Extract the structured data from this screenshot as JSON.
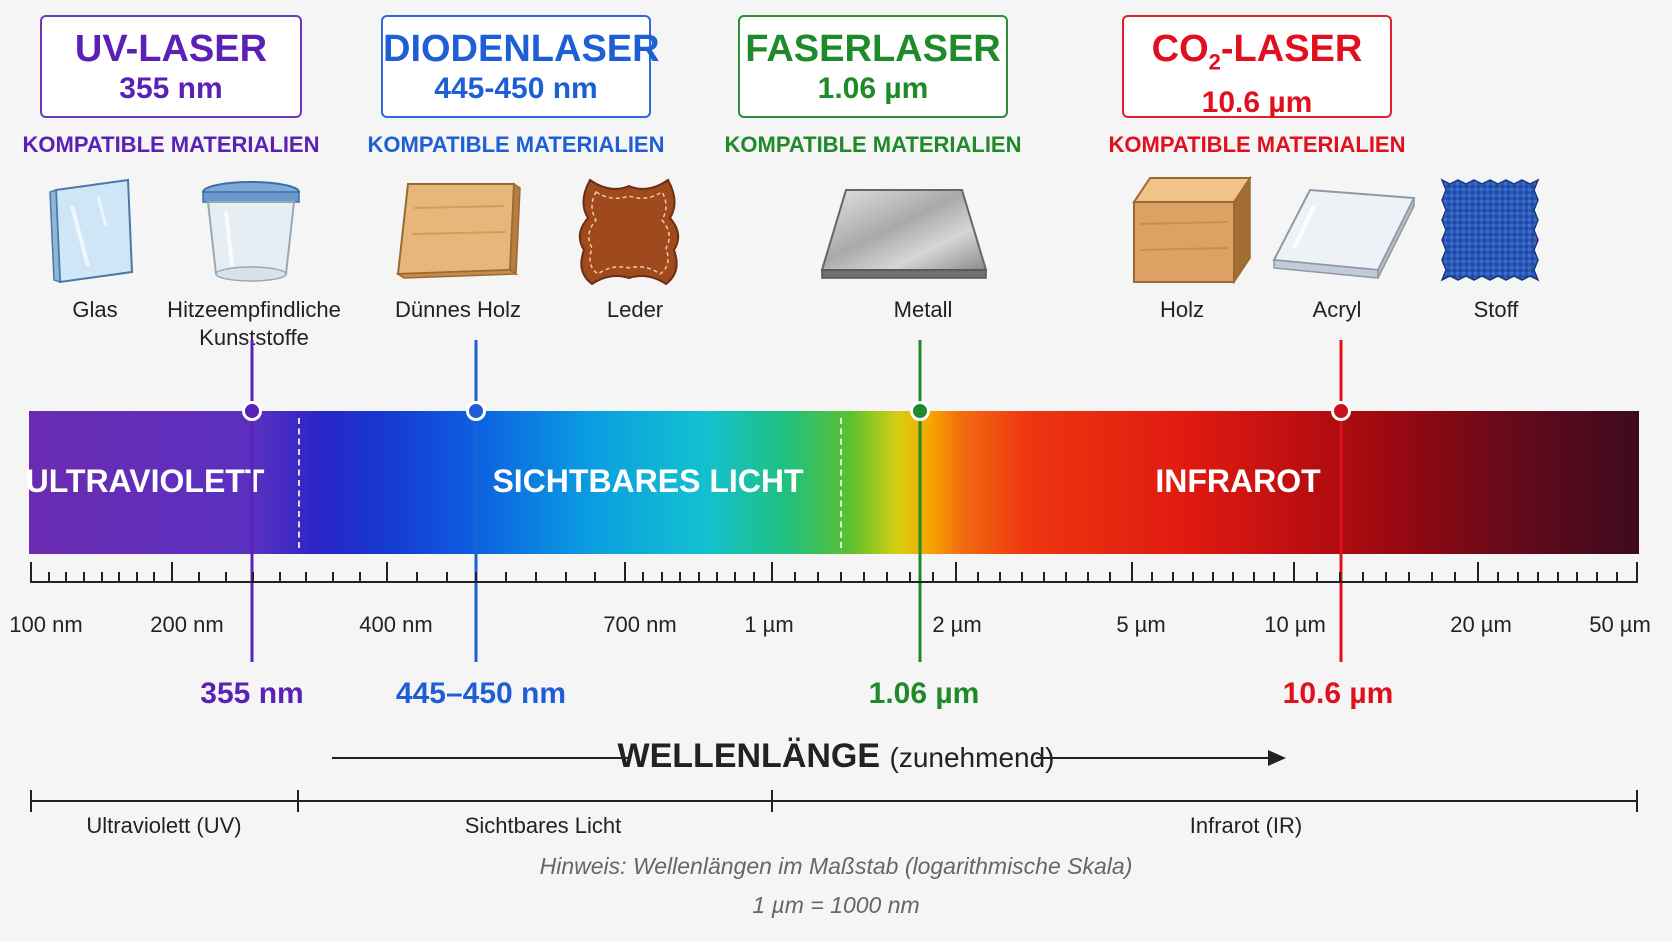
{
  "lasers": [
    {
      "name": "UV-LASER",
      "wavelength": "355 nm",
      "compatible_heading": "KOMPATIBLE MATERIALIEN",
      "color": "#5b21b6",
      "marker_label": "355 nm",
      "marker_wavelength_nm": 355
    },
    {
      "name": "DIODENLASER",
      "wavelength": "445-450 nm",
      "compatible_heading": "KOMPATIBLE MATERIALIEN",
      "color": "#1e5fd6",
      "marker_label": "445–450 nm",
      "marker_wavelength_nm": 447
    },
    {
      "name": "FASERLASER",
      "wavelength": "1.06 µm",
      "compatible_heading": "KOMPATIBLE MATERIALIEN",
      "color": "#1f8a2a",
      "marker_label": "1.06 µm",
      "marker_wavelength_nm": 1060
    },
    {
      "name_prefix": "CO",
      "name_sub": "2",
      "name_suffix": "-LASER",
      "wavelength": "10.6 µm",
      "compatible_heading": "KOMPATIBLE MATERIALIEN",
      "color": "#e0101e",
      "marker_label": "10.6 µm",
      "marker_wavelength_nm": 10600
    }
  ],
  "materials": [
    {
      "label": "Glas",
      "icon": "glass-pane-icon"
    },
    {
      "label": "Hitzeempfindliche",
      "label2": "Kunststoffe",
      "icon": "plastic-container-icon"
    },
    {
      "label": "Dünnes Holz",
      "icon": "thin-wood-icon"
    },
    {
      "label": "Leder",
      "icon": "leather-hide-icon"
    },
    {
      "label": "Metall",
      "icon": "metal-plate-icon"
    },
    {
      "label": "Holz",
      "icon": "wood-block-icon"
    },
    {
      "label": "Acryl",
      "icon": "acrylic-sheet-icon"
    },
    {
      "label": "Stoff",
      "icon": "fabric-swatch-icon"
    }
  ],
  "band": {
    "uv_label": "ULTRAVIOLETT",
    "visible_label": "SICHTBARES LICHT",
    "ir_label": "INFRAROT"
  },
  "axis": {
    "scale": "log",
    "range_nm": [
      100,
      50000
    ],
    "tick_labels": [
      "100 nm",
      "200 nm",
      "400 nm",
      "700 nm",
      "1 µm",
      "2 µm",
      "5 µm",
      "10 µm",
      "20 µm",
      "50 µm"
    ],
    "tick_values_nm": [
      100,
      200,
      400,
      700,
      1000,
      2000,
      5000,
      10000,
      20000,
      50000
    ]
  },
  "wavelength_title": {
    "main": "WELLENLÄNGE",
    "sub": "(zunehmend)"
  },
  "regions": [
    {
      "label": "Ultraviolett (UV)"
    },
    {
      "label": "Sichtbares Licht"
    },
    {
      "label": "Infrarot (IR)"
    }
  ],
  "notes": {
    "hint": "Hinweis: Wellenlängen im Maßstab (logarithmische Skala)",
    "conversion": "1 µm = 1000 nm"
  }
}
